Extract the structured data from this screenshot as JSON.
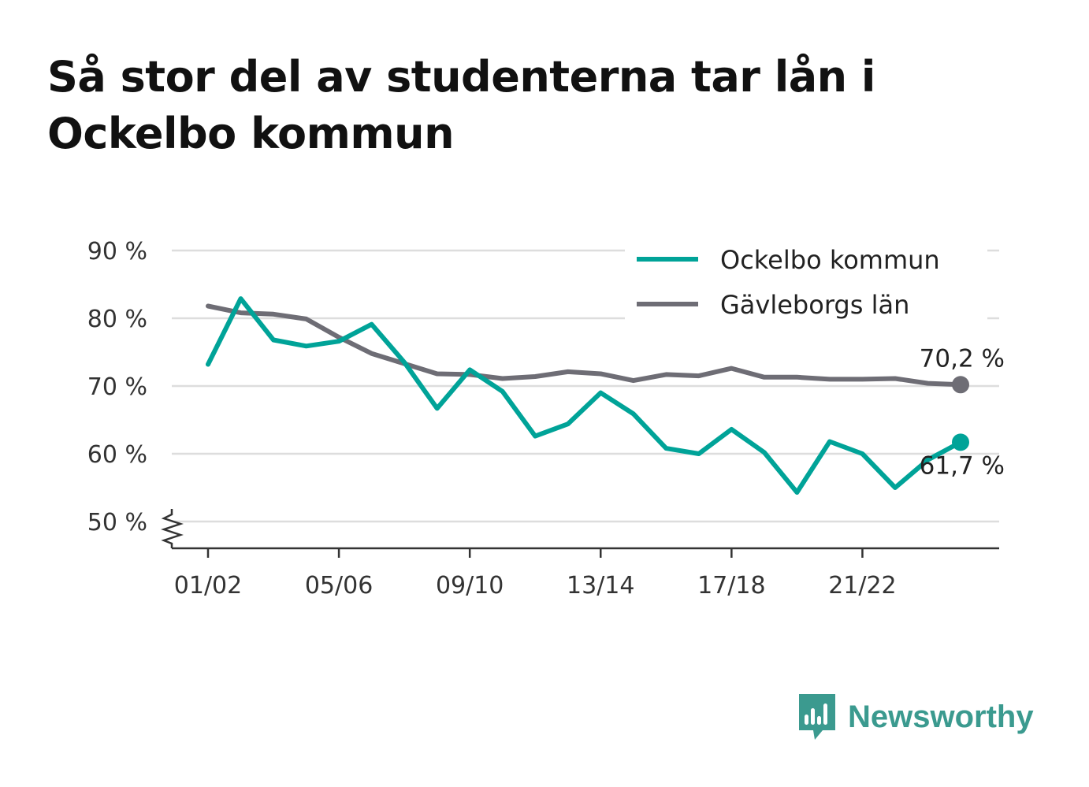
{
  "title": "Så stor del av studenterna tar lån i Ockelbo kommun",
  "brand": {
    "name": "Newsworthy",
    "icon": "bar-chart-speech-bubble-icon",
    "color": "#3b9a8f"
  },
  "chart_data": {
    "type": "line",
    "title": "Så stor del av studenterna tar lån i Ockelbo kommun",
    "xlabel": "",
    "ylabel": "",
    "ylim": [
      50,
      90
    ],
    "y_axis_break": true,
    "yticks": [
      50,
      60,
      70,
      80,
      90
    ],
    "ytick_labels": [
      "50 %",
      "60 %",
      "70 %",
      "80 %",
      "90 %"
    ],
    "grid": true,
    "legend_position": "top-right",
    "categories": [
      "01/02",
      "02/03",
      "03/04",
      "04/05",
      "05/06",
      "06/07",
      "07/08",
      "08/09",
      "09/10",
      "10/11",
      "11/12",
      "12/13",
      "13/14",
      "14/15",
      "15/16",
      "16/17",
      "17/18",
      "18/19",
      "19/20",
      "20/21",
      "21/22",
      "22/23",
      "23/24",
      "24/25"
    ],
    "xtick_labels": [
      "01/02",
      "05/06",
      "09/10",
      "13/14",
      "17/18",
      "21/22"
    ],
    "series": [
      {
        "name": "Ockelbo kommun",
        "color": "#00a398",
        "values": [
          73.2,
          82.9,
          76.8,
          75.9,
          76.6,
          79.1,
          73.5,
          66.7,
          72.4,
          69.2,
          62.6,
          64.4,
          69.0,
          65.9,
          60.8,
          60.0,
          63.6,
          60.2,
          54.3,
          61.8,
          60.0,
          55.0,
          59.1,
          61.7
        ],
        "end_label": "61,7 %"
      },
      {
        "name": "Gävleborgs län",
        "color": "#6e6d75",
        "values": [
          81.8,
          80.8,
          80.6,
          79.9,
          77.2,
          74.8,
          73.3,
          71.8,
          71.7,
          71.1,
          71.4,
          72.1,
          71.8,
          70.8,
          71.7,
          71.5,
          72.6,
          71.3,
          71.3,
          71.0,
          71.0,
          71.1,
          70.4,
          70.2
        ],
        "end_label": "70,2 %"
      }
    ]
  }
}
